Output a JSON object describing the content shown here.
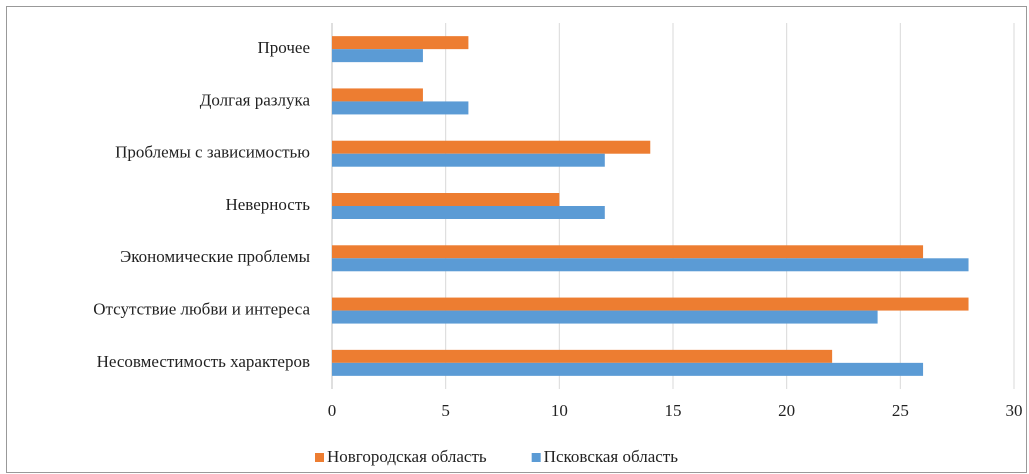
{
  "chart_data": {
    "type": "hbar",
    "categories": [
      "Прочее",
      "Долгая разлука",
      "Проблемы с зависимостью",
      "Неверность",
      "Экономические проблемы",
      "Отсутствие  любви и интереса",
      "Несовместимость характеров"
    ],
    "series": [
      {
        "name": "Новгородская область",
        "color": "#ed7d31",
        "values": [
          6,
          4,
          14,
          10,
          26,
          28,
          22
        ]
      },
      {
        "name": "Псковская область",
        "color": "#5b9bd5",
        "values": [
          4,
          6,
          12,
          12,
          28,
          24,
          26
        ]
      }
    ],
    "xlim": [
      0,
      30
    ],
    "xticks": [
      0,
      5,
      10,
      15,
      20,
      25,
      30
    ],
    "grid": true,
    "legend": "bottom"
  }
}
